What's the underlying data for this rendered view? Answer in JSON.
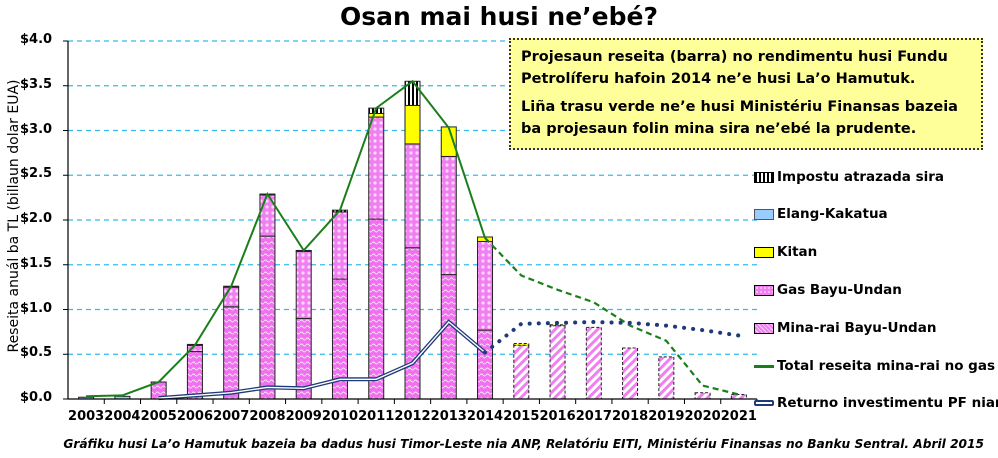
{
  "chart_data": {
    "type": "bar",
    "title": "Osan mai husi ne’ebé?",
    "xlabel": "",
    "ylabel": "Reseita anuál ba TL (billaun dolar EUA)",
    "ylim": [
      0,
      4.0
    ],
    "yticks": [
      "$0.0",
      "$0.5",
      "$1.0",
      "$1.5",
      "$2.0",
      "$2.5",
      "$3.0",
      "$3.5",
      "$4.0"
    ],
    "grid": true,
    "legend_position": "right",
    "categories": [
      "2003",
      "2004",
      "2005",
      "2006",
      "2007",
      "2008",
      "2009",
      "2010",
      "2011",
      "2012",
      "2013",
      "2014",
      "2015",
      "2016",
      "2017",
      "2018",
      "2019",
      "2020",
      "2021"
    ],
    "series": [
      {
        "name": "Mina-rai Bayu-Undan",
        "type": "bar-stacked",
        "color": "#f080f0",
        "values": [
          0,
          0,
          0.19,
          0.53,
          1.03,
          1.82,
          0.9,
          1.34,
          2.01,
          1.69,
          1.39,
          0.77,
          0.6,
          0.82,
          0.8,
          0.57,
          0.47,
          0.07,
          0.05
        ]
      },
      {
        "name": "Gas Bayu-Undan",
        "type": "bar-stacked",
        "color": "#f080f0",
        "values": [
          0,
          0,
          0,
          0.07,
          0.22,
          0.46,
          0.75,
          0.75,
          1.14,
          1.16,
          1.32,
          0.99,
          0,
          0,
          0,
          0,
          0,
          0,
          0
        ]
      },
      {
        "name": "Kitan",
        "type": "bar-stacked",
        "color": "#ffff00",
        "values": [
          0,
          0,
          0,
          0,
          0,
          0,
          0,
          0,
          0.04,
          0.43,
          0.33,
          0.05,
          0.02,
          0.01,
          0,
          0,
          0,
          0,
          0
        ]
      },
      {
        "name": "Elang-Kakatua",
        "type": "bar-stacked",
        "color": "#99ccff",
        "values": [
          0.02,
          0.03,
          0,
          0,
          0,
          0,
          0,
          0,
          0,
          0,
          0,
          0,
          0,
          0,
          0,
          0,
          0,
          0,
          0
        ]
      },
      {
        "name": "Impostu atrazada sira",
        "type": "bar-stacked",
        "color": "#000000",
        "values": [
          0,
          0,
          0,
          0.01,
          0.01,
          0.01,
          0.01,
          0.02,
          0.06,
          0.27,
          0,
          0,
          0,
          0,
          0,
          0,
          0,
          0,
          0
        ]
      },
      {
        "name": "Total reseita mina-rai no gas",
        "type": "line",
        "color": "#1a7f1a",
        "values": [
          0.03,
          0.04,
          0.19,
          0.6,
          1.26,
          2.29,
          1.66,
          2.11,
          3.25,
          3.55,
          3.03,
          1.8,
          1.38,
          1.22,
          1.08,
          0.82,
          0.65,
          0.15,
          0.05
        ],
        "projected_from": "2014"
      },
      {
        "name": "Returno investimentu PF nian",
        "type": "line",
        "color": "#1f3a7a",
        "values": [
          null,
          null,
          0.01,
          0.04,
          0.07,
          0.13,
          0.12,
          0.22,
          0.22,
          0.4,
          0.86,
          0.52,
          0.84,
          0.85,
          0.86,
          0.85,
          0.82,
          0.77,
          0.71
        ],
        "projected_from": "2014"
      }
    ],
    "annotations": [
      "Projesaun reseita (barra) no rendimentu husi Fundu Petrolíferu hafoin 2014 ne’e husi La’o Hamutuk.",
      "Liña trasu verde ne’e husi Ministériu Finansas bazeia ba projesaun folin mina sira ne’ebé la prudente."
    ],
    "source": "Gráfiku husi La’o Hamutuk bazeia ba dadus husi Timor-Leste nia ANP, Relatóriu EITI, Ministériu Finansas no Banku Sentral. Abril 2015"
  },
  "header": {
    "title": "Osan mai husi ne’ebé?"
  },
  "note": {
    "line1": "Projesaun reseita (barra) no rendimentu husi Fundu Petrolíferu hafoin 2014 ne’e husi La’o Hamutuk.",
    "line2": "Liña trasu verde ne’e husi Ministériu Finansas bazeia ba projesaun folin mina sira ne’ebé la prudente."
  },
  "legend": {
    "items": [
      {
        "label": "Impostu atrazada sira",
        "swatch": "sw-impostu"
      },
      {
        "label": "Elang-Kakatua",
        "swatch": "sw-elang"
      },
      {
        "label": "Kitan",
        "swatch": "sw-kitan"
      },
      {
        "label": "Gas Bayu-Undan",
        "swatch": "sw-gas"
      },
      {
        "label": "Mina-rai Bayu-Undan",
        "swatch": "sw-oil"
      },
      {
        "label": "Total reseita mina-rai no gas",
        "swatch": "sw-line-green"
      },
      {
        "label": "Returno investimentu PF nian",
        "swatch": "sw-line-navy"
      }
    ]
  },
  "axis": {
    "ylabel": "Reseita anuál ba TL (billaun dolar EUA)"
  },
  "caption": "Gráfiku husi La’o Hamutuk bazeia ba dadus husi Timor-Leste nia ANP, Relatóriu EITI, Ministériu Finansas no Banku Sentral. Abril 2015",
  "colors": {
    "oil": "#f080f0",
    "gas": "#f080f0",
    "kitan": "#ffff00",
    "elang": "#99ccff",
    "total_line": "#1a7f1a",
    "pf_line": "#1f3a7a",
    "grid": "#33bbee",
    "note_bg": "#ffff99"
  }
}
